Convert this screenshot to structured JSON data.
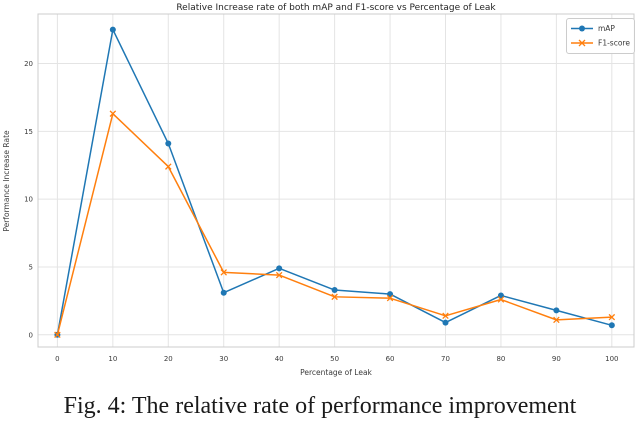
{
  "figure": {
    "title": "Relative Increase rate of both mAP and F1-score vs Percentage of Leak",
    "xlabel": "Percentage of Leak",
    "ylabel": "Performance Increase Rate"
  },
  "legend": {
    "entries": [
      {
        "label": "mAP",
        "color": "#1f77b4",
        "marker": "circle"
      },
      {
        "label": "F1-score",
        "color": "#ff7f0e",
        "marker": "x"
      }
    ]
  },
  "caption": {
    "text": "Fig. 4: The relative rate of performance improvement"
  },
  "colors": {
    "map_series": "#1f77b4",
    "f1_series": "#ff7f0e",
    "grid": "#e4e4e4",
    "spine": "#cccccc",
    "tick_text": "#3a3a3a",
    "title_text": "#262626"
  },
  "chart_data": {
    "type": "line",
    "title": "Relative Increase rate of both mAP and F1-score vs Percentage of Leak",
    "xlabel": "Percentage of Leak",
    "ylabel": "Performance Increase Rate",
    "x": [
      0,
      10,
      20,
      30,
      40,
      50,
      60,
      70,
      80,
      90,
      100
    ],
    "series": [
      {
        "name": "mAP",
        "color": "#1f77b4",
        "marker": "circle",
        "values": [
          0.0,
          22.5,
          14.1,
          3.1,
          4.9,
          3.3,
          3.0,
          0.9,
          2.9,
          1.8,
          0.7
        ]
      },
      {
        "name": "F1-score",
        "color": "#ff7f0e",
        "marker": "x",
        "values": [
          0.0,
          16.3,
          12.4,
          4.6,
          4.4,
          2.8,
          2.7,
          1.4,
          2.6,
          1.1,
          1.3
        ]
      }
    ],
    "x_ticks": [
      0,
      10,
      20,
      30,
      40,
      50,
      60,
      70,
      80,
      90,
      100
    ],
    "y_ticks": [
      0,
      5,
      10,
      15,
      20
    ],
    "xlim": [
      -3.5,
      104
    ],
    "ylim": [
      -0.9,
      23.65
    ],
    "grid": true,
    "legend_position": "upper right"
  }
}
